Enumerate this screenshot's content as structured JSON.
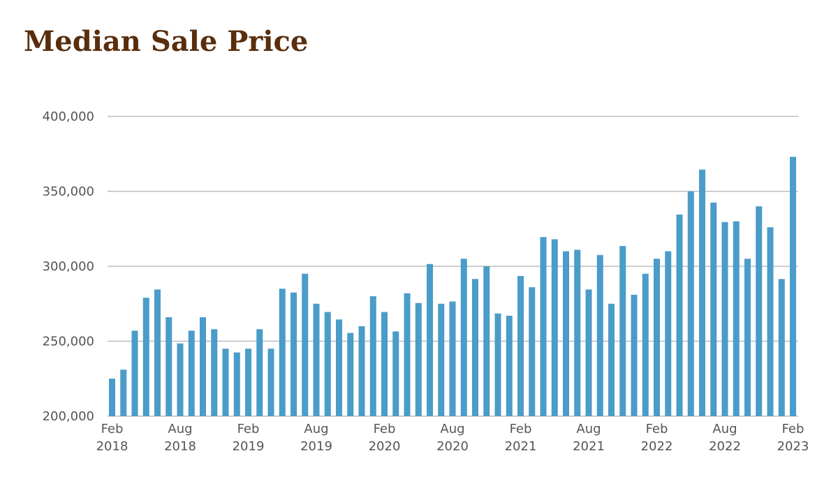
{
  "chart_data": {
    "type": "bar",
    "title": "Median Sale Price",
    "xlabel": "",
    "ylabel": "",
    "ylim": [
      200000,
      400000
    ],
    "y_ticks": [
      200000,
      250000,
      300000,
      350000,
      400000
    ],
    "y_tick_labels": [
      "200,000",
      "250,000",
      "300,000",
      "350,000",
      "400,000"
    ],
    "x_tick_labels": [
      {
        "index": 0,
        "month": "Feb",
        "year": "2018"
      },
      {
        "index": 6,
        "month": "Aug",
        "year": "2018"
      },
      {
        "index": 12,
        "month": "Feb",
        "year": "2019"
      },
      {
        "index": 18,
        "month": "Aug",
        "year": "2019"
      },
      {
        "index": 24,
        "month": "Feb",
        "year": "2020"
      },
      {
        "index": 30,
        "month": "Aug",
        "year": "2020"
      },
      {
        "index": 36,
        "month": "Feb",
        "year": "2021"
      },
      {
        "index": 42,
        "month": "Aug",
        "year": "2021"
      },
      {
        "index": 48,
        "month": "Feb",
        "year": "2022"
      },
      {
        "index": 54,
        "month": "Aug",
        "year": "2022"
      },
      {
        "index": 60,
        "month": "Feb",
        "year": "2023"
      }
    ],
    "categories": [
      "2018-02",
      "2018-03",
      "2018-04",
      "2018-05",
      "2018-06",
      "2018-07",
      "2018-08",
      "2018-09",
      "2018-10",
      "2018-11",
      "2018-12",
      "2019-01",
      "2019-02",
      "2019-03",
      "2019-04",
      "2019-05",
      "2019-06",
      "2019-07",
      "2019-08",
      "2019-09",
      "2019-10",
      "2019-11",
      "2019-12",
      "2020-01",
      "2020-02",
      "2020-03",
      "2020-04",
      "2020-05",
      "2020-06",
      "2020-07",
      "2020-08",
      "2020-09",
      "2020-10",
      "2020-11",
      "2020-12",
      "2021-01",
      "2021-02",
      "2021-03",
      "2021-04",
      "2021-05",
      "2021-06",
      "2021-07",
      "2021-08",
      "2021-09",
      "2021-10",
      "2021-11",
      "2021-12",
      "2022-01",
      "2022-02",
      "2022-03",
      "2022-04",
      "2022-05",
      "2022-06",
      "2022-07",
      "2022-08",
      "2022-09",
      "2022-10",
      "2022-11",
      "2022-12",
      "2023-01",
      "2023-02"
    ],
    "values": [
      225000,
      231000,
      257000,
      279000,
      284500,
      266000,
      248500,
      257000,
      266000,
      258000,
      245000,
      242500,
      245000,
      258000,
      245000,
      285000,
      282500,
      295000,
      275000,
      269500,
      264500,
      255500,
      260000,
      280000,
      269500,
      256500,
      282000,
      275500,
      301500,
      275000,
      276500,
      305000,
      291500,
      300000,
      268500,
      267000,
      293500,
      286000,
      319500,
      318000,
      310000,
      311000,
      284500,
      307500,
      275000,
      313500,
      281000,
      295000,
      305000,
      310000,
      334500,
      350000,
      364500,
      342500,
      329500,
      330000,
      305000,
      340000,
      326000,
      291500,
      373000
    ],
    "bar_color": "#4a9cc9",
    "grid": true
  }
}
